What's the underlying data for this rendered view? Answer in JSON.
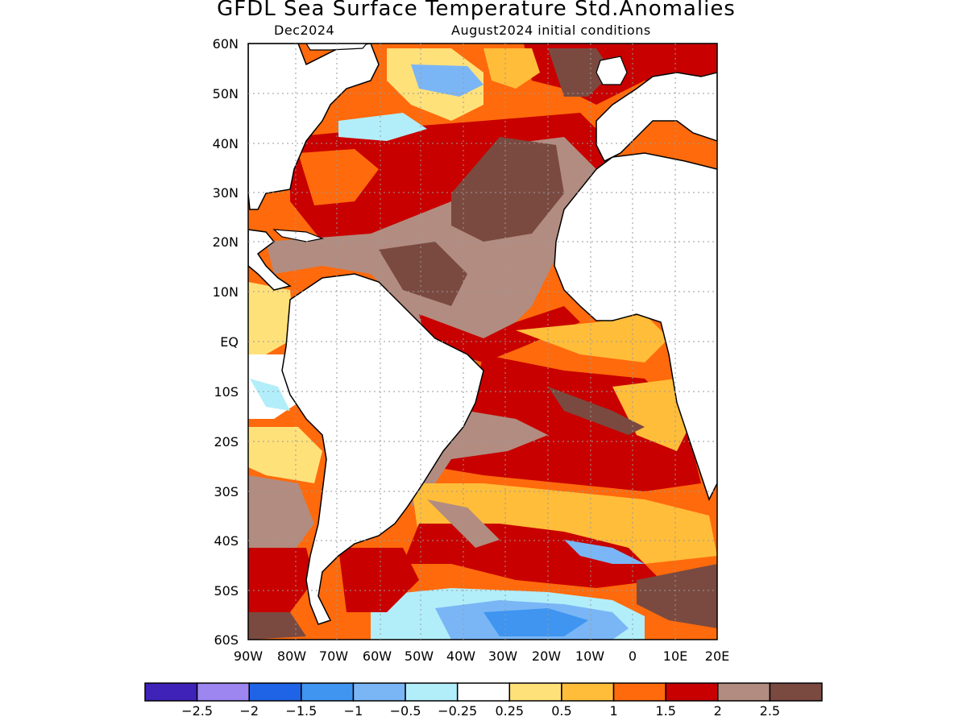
{
  "title": "GFDL Sea Surface Temperature Std.Anomalies",
  "valid_month": "Dec2024",
  "init_conditions": "August2024 initial conditions",
  "lat_labels": [
    "60N",
    "50N",
    "40N",
    "30N",
    "20N",
    "10N",
    "EQ",
    "10S",
    "20S",
    "30S",
    "40S",
    "50S",
    "60S"
  ],
  "lon_labels": [
    "90W",
    "80W",
    "70W",
    "60W",
    "50W",
    "40W",
    "30W",
    "20W",
    "10W",
    "0",
    "10E",
    "20E"
  ],
  "colorbar": {
    "colors": [
      "#3f22b8",
      "#9d86f0",
      "#1f64e6",
      "#3f95f0",
      "#7ab6f5",
      "#b2eefa",
      "#ffffff",
      "#ffe17a",
      "#ffbd3a",
      "#ff6a0c",
      "#c80000",
      "#b28c80",
      "#7a4a40"
    ],
    "labels": [
      "-2.5",
      "-2",
      "-1.5",
      "-1",
      "-0.5",
      "-0.25",
      "0.25",
      "0.5",
      "1",
      "1.5",
      "2",
      "2.5"
    ]
  },
  "map": {
    "lon_range": [
      -90,
      20
    ],
    "lat_range": [
      -60,
      60
    ],
    "anomaly_regions": [
      {
        "name": "north-atlantic-warm-band",
        "level": "1.5"
      },
      {
        "name": "central-atlantic-strong-warm",
        "level": "2.5"
      },
      {
        "name": "south-atlantic-strong-warm",
        "level": "2"
      },
      {
        "name": "southern-ocean-cold",
        "level": "-1"
      }
    ]
  }
}
